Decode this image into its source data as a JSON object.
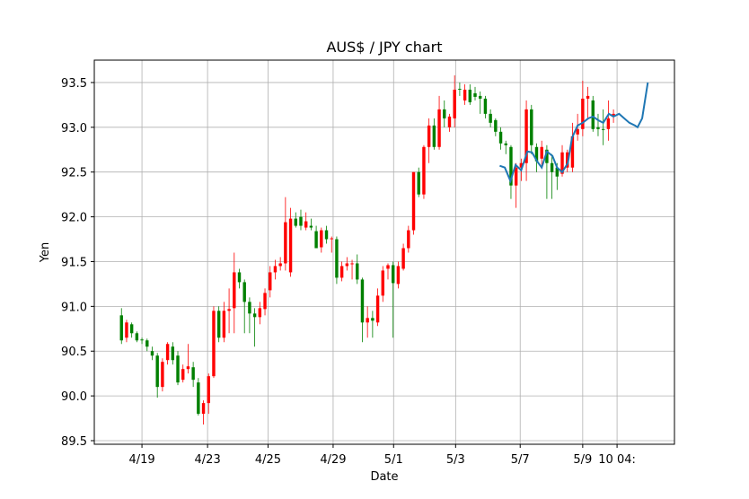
{
  "chart_data": {
    "type": "candlestick",
    "title": "AUS$ / JPY chart",
    "x_label": "Date",
    "y_label": "Yen",
    "up_color": "#ff0000",
    "down_color": "#008000",
    "grid": true,
    "xlim": [
      -5.3,
      107.9
    ],
    "ylim": [
      89.46,
      93.75
    ],
    "xticks": [
      {
        "value": 4.0,
        "label": "4/19"
      },
      {
        "value": 16.8,
        "label": "4/23"
      },
      {
        "value": 28.6,
        "label": "4/25"
      },
      {
        "value": 41.3,
        "label": "4/29"
      },
      {
        "value": 53.1,
        "label": "5/1"
      },
      {
        "value": 65.2,
        "label": "5/3"
      },
      {
        "value": 77.8,
        "label": "5/7"
      },
      {
        "value": 90.0,
        "label": "5/9"
      },
      {
        "value": 96.7,
        "label": "10 04:"
      }
    ],
    "yticks": [
      89.5,
      {
        "value": 90,
        "label": "90.0"
      },
      90.5,
      {
        "value": 91,
        "label": "91.0"
      },
      91.5,
      {
        "value": 92,
        "label": "92.0"
      },
      92.5,
      {
        "value": 93,
        "label": "93.0"
      },
      93.5
    ],
    "open": [
      90.9,
      90.65,
      90.8,
      90.7,
      90.63,
      90.62,
      90.5,
      90.45,
      90.1,
      90.4,
      90.55,
      90.45,
      90.18,
      90.3,
      90.32,
      90.15,
      89.8,
      89.92,
      90.22,
      90.95,
      90.65,
      90.95,
      90.98,
      91.38,
      91.27,
      91.05,
      90.92,
      90.88,
      90.97,
      91.18,
      91.38,
      91.45,
      91.48,
      91.38,
      91.98,
      92.0,
      91.88,
      91.9,
      91.84,
      91.66,
      91.85,
      91.75,
      91.75,
      91.32,
      91.45,
      91.47,
      91.48,
      91.3,
      90.82,
      90.87,
      90.82,
      91.12,
      91.42,
      91.46,
      91.25,
      91.42,
      91.65,
      91.85,
      92.5,
      92.25,
      92.78,
      93.02,
      92.78,
      93.2,
      93.0,
      93.1,
      93.43,
      93.3,
      93.42,
      93.38,
      93.35,
      93.32,
      93.15,
      93.08,
      92.95,
      92.82,
      92.78,
      92.35,
      92.55,
      92.6,
      93.2,
      92.78,
      92.65,
      92.75,
      92.6,
      92.55,
      92.48,
      92.55,
      92.55,
      92.92,
      92.98,
      93.32,
      93.3,
      93.0,
      92.98,
      92.98,
      93.12
    ],
    "high": [
      90.98,
      90.85,
      90.82,
      90.72,
      90.65,
      90.64,
      90.55,
      90.48,
      90.42,
      90.6,
      90.6,
      90.5,
      90.35,
      90.58,
      90.38,
      90.2,
      89.95,
      90.25,
      91.0,
      91.0,
      91.05,
      91.2,
      91.6,
      91.42,
      91.3,
      91.1,
      90.98,
      91.05,
      91.2,
      91.45,
      91.52,
      91.55,
      92.22,
      92.1,
      92.05,
      92.08,
      92.05,
      91.98,
      91.9,
      91.88,
      91.9,
      91.78,
      91.78,
      91.5,
      91.55,
      91.52,
      91.58,
      91.32,
      91.0,
      90.95,
      91.2,
      91.45,
      91.48,
      91.5,
      91.5,
      91.7,
      91.9,
      92.5,
      92.55,
      92.8,
      93.1,
      93.1,
      93.35,
      93.3,
      93.15,
      93.58,
      93.5,
      93.48,
      93.48,
      93.45,
      93.4,
      93.35,
      93.2,
      93.1,
      93.0,
      92.85,
      92.8,
      92.6,
      92.65,
      93.3,
      93.25,
      92.82,
      92.85,
      92.8,
      92.7,
      92.6,
      92.8,
      92.75,
      93.05,
      93.15,
      93.52,
      93.45,
      93.35,
      93.15,
      93.2,
      93.3,
      93.2
    ],
    "low": [
      90.58,
      90.6,
      90.65,
      90.6,
      90.58,
      90.5,
      90.4,
      89.98,
      90.05,
      90.35,
      90.35,
      90.12,
      90.15,
      90.25,
      90.1,
      89.78,
      89.68,
      89.8,
      90.2,
      90.6,
      90.6,
      90.7,
      90.7,
      91.2,
      90.7,
      90.7,
      90.55,
      90.8,
      90.9,
      91.1,
      91.3,
      91.4,
      91.4,
      91.33,
      91.88,
      91.85,
      91.85,
      91.85,
      91.65,
      91.6,
      91.7,
      91.6,
      91.25,
      91.28,
      91.4,
      91.3,
      91.25,
      90.6,
      90.65,
      90.65,
      90.78,
      91.05,
      91.3,
      90.65,
      91.2,
      91.4,
      91.6,
      91.8,
      92.22,
      92.2,
      92.6,
      92.75,
      92.75,
      93.0,
      92.95,
      93.0,
      93.35,
      93.25,
      93.25,
      93.3,
      93.15,
      93.1,
      93.0,
      92.9,
      92.75,
      92.7,
      92.2,
      92.1,
      92.4,
      92.4,
      92.7,
      92.5,
      92.55,
      92.2,
      92.2,
      92.3,
      92.45,
      92.5,
      92.5,
      92.85,
      92.9,
      93.1,
      92.95,
      92.9,
      92.8,
      92.85,
      93.05
    ],
    "close": [
      90.62,
      90.82,
      90.7,
      90.62,
      90.62,
      90.55,
      90.45,
      90.1,
      90.38,
      90.58,
      90.4,
      90.15,
      90.3,
      90.33,
      90.18,
      89.8,
      89.92,
      90.22,
      90.95,
      90.65,
      90.95,
      90.97,
      91.38,
      91.27,
      91.05,
      90.92,
      90.88,
      90.98,
      91.15,
      91.38,
      91.45,
      91.48,
      91.94,
      91.98,
      91.9,
      91.9,
      91.95,
      91.88,
      91.65,
      91.85,
      91.75,
      91.76,
      91.32,
      91.45,
      91.48,
      91.48,
      91.3,
      90.82,
      90.87,
      90.84,
      91.12,
      91.4,
      91.46,
      91.26,
      91.45,
      91.65,
      91.85,
      92.5,
      92.25,
      92.78,
      93.02,
      92.78,
      93.2,
      93.1,
      93.12,
      93.42,
      93.42,
      93.42,
      93.28,
      93.34,
      93.32,
      93.15,
      93.05,
      92.95,
      92.82,
      92.8,
      92.35,
      92.55,
      92.6,
      93.2,
      92.8,
      92.62,
      92.78,
      92.6,
      92.5,
      92.45,
      92.72,
      92.72,
      92.9,
      92.98,
      93.32,
      93.35,
      92.98,
      92.98,
      92.97,
      93.1,
      93.15
    ],
    "line": {
      "color": "#1f77b4",
      "x": [
        73.8,
        74.8,
        75.9,
        76.9,
        78.0,
        79.2,
        80.1,
        81.1,
        82.0,
        83.0,
        84.1,
        85.0,
        86.0,
        87.1,
        87.9,
        89.0,
        90.0,
        91.1,
        92.0,
        93.0,
        94.0,
        95.1,
        96.0,
        97.1,
        98.1,
        99.1,
        100.2,
        100.7,
        101.6,
        102.7
      ],
      "y": [
        92.57,
        92.55,
        92.4,
        92.58,
        92.52,
        92.73,
        92.72,
        92.62,
        92.55,
        92.73,
        92.68,
        92.55,
        92.5,
        92.6,
        92.88,
        93.02,
        93.05,
        93.1,
        93.12,
        93.08,
        93.05,
        93.15,
        93.12,
        93.15,
        93.1,
        93.05,
        93.02,
        93.0,
        93.1,
        93.5
      ]
    }
  }
}
